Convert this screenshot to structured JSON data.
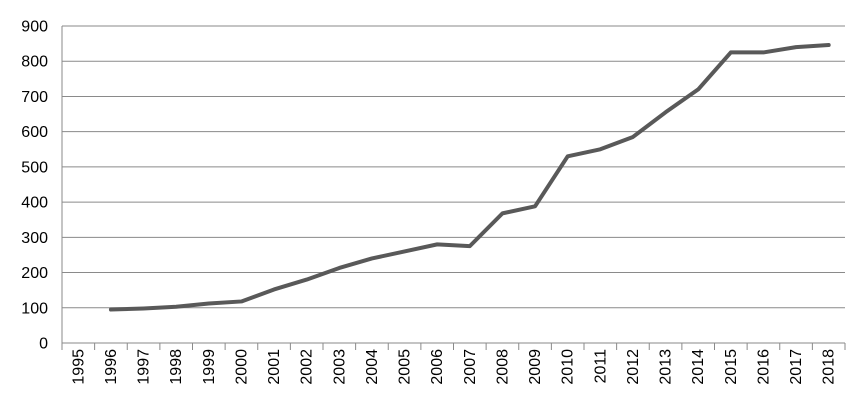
{
  "chart_data": {
    "type": "line",
    "title": "",
    "xlabel": "",
    "ylabel": "",
    "categories": [
      "1995",
      "1996",
      "1997",
      "1998",
      "1999",
      "2000",
      "2001",
      "2002",
      "2003",
      "2004",
      "2005",
      "2006",
      "2007",
      "2008",
      "2009",
      "2010",
      "2011",
      "2012",
      "2013",
      "2014",
      "2015",
      "2016",
      "2017",
      "2018"
    ],
    "y_ticks": [
      "0",
      "100",
      "200",
      "300",
      "400",
      "500",
      "600",
      "700",
      "800",
      "900"
    ],
    "ylim": [
      0,
      900
    ],
    "grid": true,
    "legend": "none",
    "series": [
      {
        "color": "#595959",
        "values": [
          null,
          95,
          98,
          103,
          112,
          118,
          152,
          180,
          213,
          240,
          260,
          280,
          275,
          368,
          388,
          530,
          550,
          585,
          655,
          720,
          825,
          825,
          840,
          846
        ]
      }
    ]
  }
}
